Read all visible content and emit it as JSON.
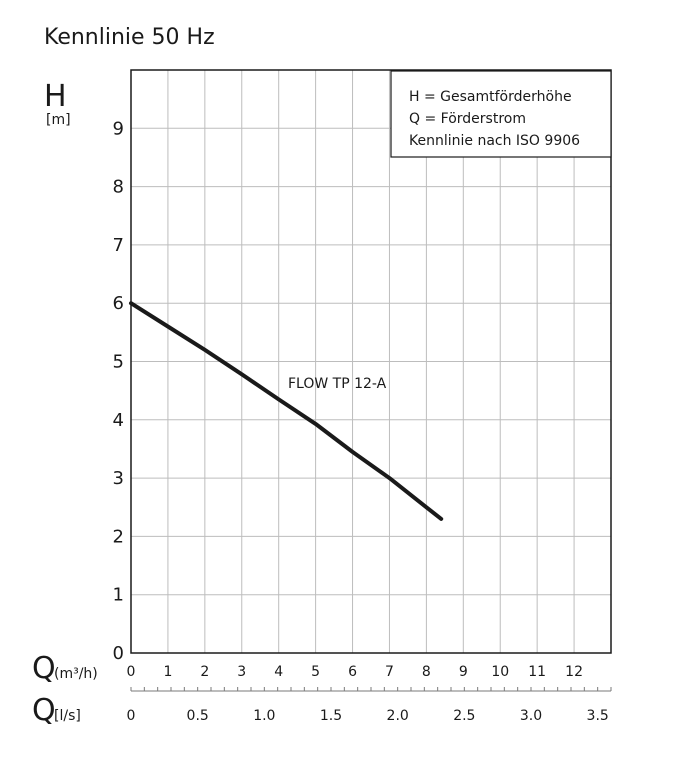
{
  "chart_data": {
    "type": "line",
    "title": "Kennlinie 50 Hz",
    "y_axis": {
      "symbol": "H",
      "unit": "[m]",
      "ylim": [
        0,
        10
      ],
      "ticks": [
        "0",
        "1",
        "2",
        "3",
        "4",
        "5",
        "6",
        "7",
        "8",
        "9"
      ]
    },
    "x_axis": {
      "symbol": "Q",
      "unit": "(m³/h)",
      "xlim": [
        0,
        13
      ],
      "ticks": [
        "0",
        "1",
        "2",
        "3",
        "4",
        "5",
        "6",
        "7",
        "8",
        "9",
        "10",
        "11",
        "12"
      ]
    },
    "x_axis_secondary": {
      "symbol": "Q",
      "unit": "[l/s]",
      "xlim": [
        0,
        3.6
      ],
      "ticks": [
        "0",
        "0.5",
        "1.0",
        "1.5",
        "2.0",
        "2.5",
        "3.0",
        "3.5"
      ],
      "tick_values": [
        0,
        0.5,
        1.0,
        1.5,
        2.0,
        2.5,
        3.0,
        3.5
      ]
    },
    "legend": {
      "placement": "top-right",
      "lines": [
        "H = Gesamtförderhöhe",
        "Q = Förderstrom",
        "Kennlinie nach ISO 9906"
      ]
    },
    "grid": true,
    "series": [
      {
        "name": "FLOW TP 12-A",
        "x": [
          0,
          1,
          2,
          3,
          4,
          5,
          6,
          7,
          8,
          8.4
        ],
        "y": [
          6.0,
          5.6,
          5.2,
          4.78,
          4.35,
          3.93,
          3.45,
          3.0,
          2.5,
          2.3
        ]
      }
    ]
  }
}
